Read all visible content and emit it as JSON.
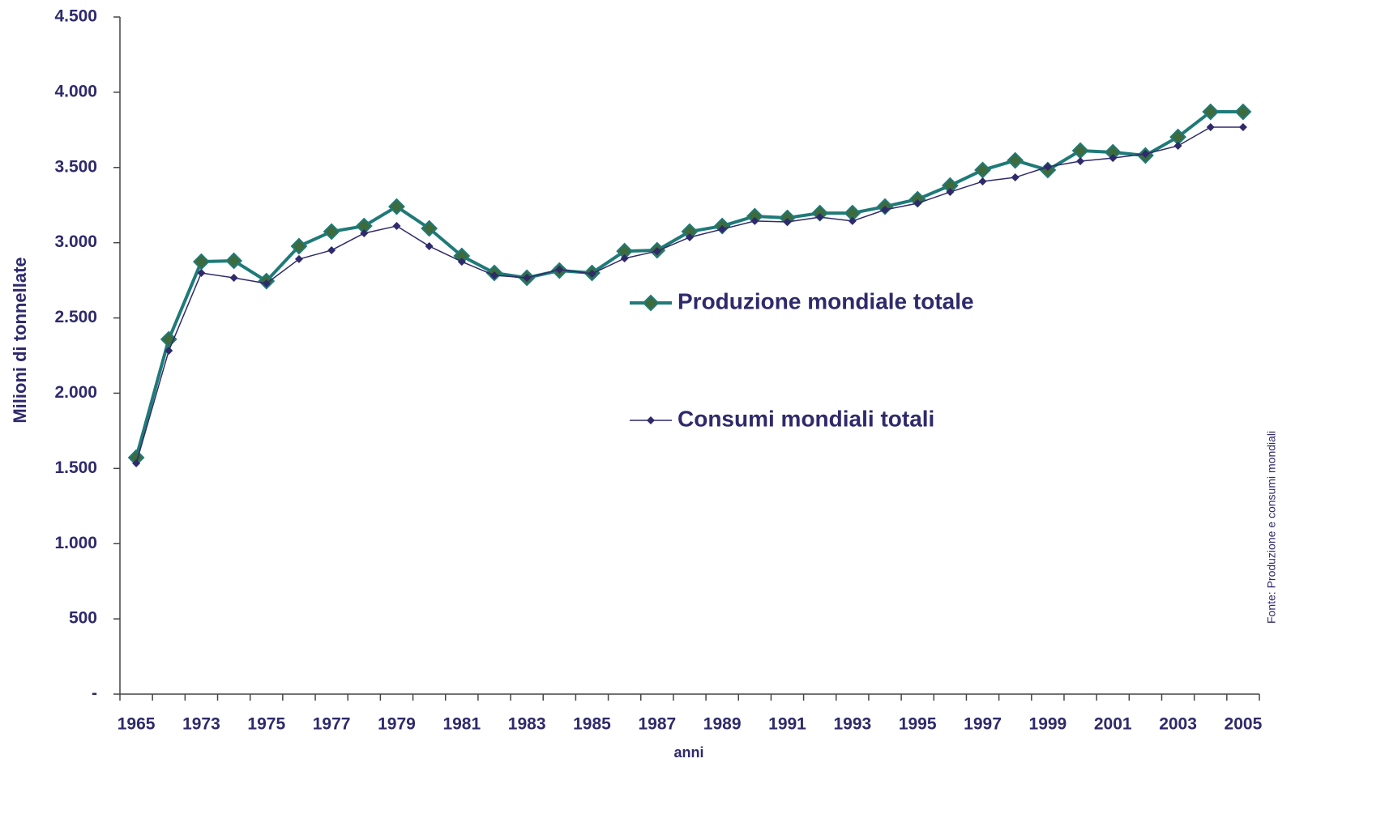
{
  "chart_data": {
    "type": "line",
    "y_label": "Milioni di tonnellate",
    "x_label": "anni",
    "source": "Fonte: Produzione e consumi mondiali",
    "categories": [
      "1965",
      null,
      "1973",
      null,
      "1975",
      null,
      "1977",
      null,
      "1979",
      null,
      "1981",
      null,
      "1983",
      null,
      "1985",
      null,
      "1987",
      null,
      "1989",
      null,
      "1991",
      null,
      "1993",
      null,
      "1995",
      null,
      "1997",
      null,
      "1999",
      null,
      "2001",
      null,
      "2003",
      null,
      "2005"
    ],
    "series": [
      {
        "name": "Produzione mondiale totale",
        "color": "#1f7a78",
        "marker_color": "#3d6b3d",
        "values": [
          1572,
          2358,
          2874,
          2880,
          2745,
          2977,
          3074,
          3111,
          3240,
          3095,
          2912,
          2799,
          2767,
          2815,
          2799,
          2944,
          2950,
          3074,
          3111,
          3176,
          3165,
          3197,
          3197,
          3240,
          3289,
          3380,
          3483,
          3547,
          3483,
          3612,
          3601,
          3580,
          3703,
          3870,
          3870
        ]
      },
      {
        "name": "Consumi mondiali totali",
        "color": "#2e2a6b",
        "marker_color": "#2e2a6b",
        "values": [
          1534,
          2282,
          2799,
          2767,
          2729,
          2891,
          2950,
          3063,
          3111,
          2977,
          2874,
          2783,
          2767,
          2821,
          2794,
          2896,
          2944,
          3036,
          3090,
          3144,
          3138,
          3170,
          3144,
          3219,
          3262,
          3337,
          3407,
          3434,
          3504,
          3542,
          3563,
          3590,
          3644,
          3768,
          3768
        ]
      }
    ],
    "ylim": [
      0,
      4500
    ],
    "yticks": [
      {
        "value": 0,
        "label": "-"
      },
      500,
      {
        "value": 1000,
        "label": "1.000"
      },
      {
        "value": 1500,
        "label": "1.500"
      },
      {
        "value": 2000,
        "label": "2.000"
      },
      {
        "value": 2500,
        "label": "2.500"
      },
      {
        "value": 3000,
        "label": "3.000"
      },
      {
        "value": 3500,
        "label": "3.500"
      },
      {
        "value": 4000,
        "label": "4.000"
      },
      {
        "value": 4500,
        "label": "4.500"
      }
    ],
    "grid": false
  }
}
